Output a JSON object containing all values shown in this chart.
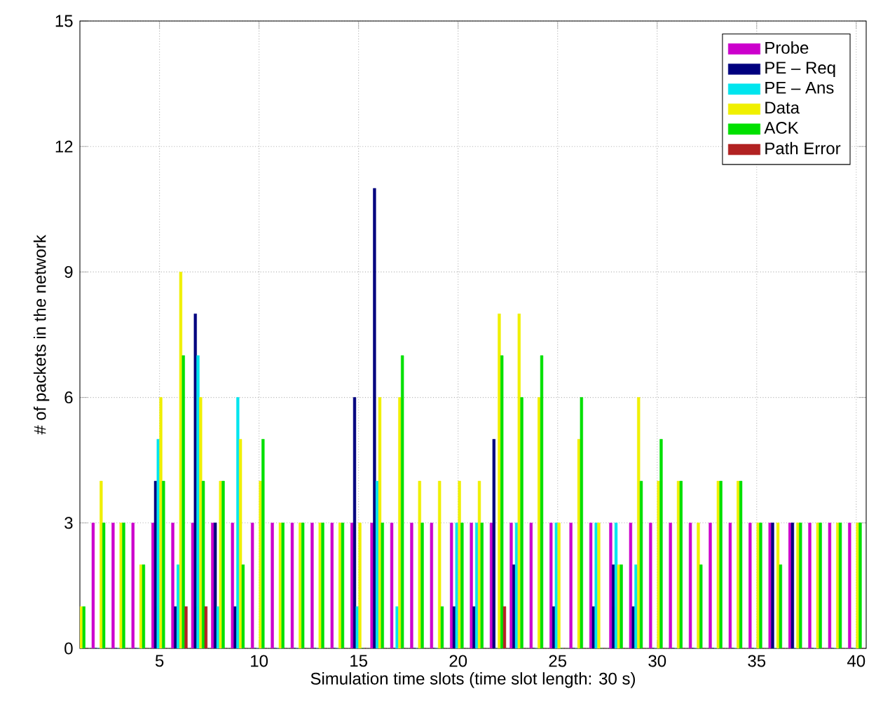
{
  "chart_data": {
    "type": "bar",
    "xlabel": "Simulation time slots (time slot length: 30 s)",
    "ylabel": "# of packets in the network",
    "x": [
      1,
      2,
      3,
      4,
      5,
      6,
      7,
      8,
      9,
      10,
      11,
      12,
      13,
      14,
      15,
      16,
      17,
      18,
      19,
      20,
      21,
      22,
      23,
      24,
      25,
      26,
      27,
      28,
      29,
      30,
      31,
      32,
      33,
      34,
      35,
      36,
      37,
      38,
      39,
      40
    ],
    "xlim": [
      1,
      40.5
    ],
    "ylim": [
      0,
      15
    ],
    "xticks": [
      5,
      10,
      15,
      20,
      25,
      30,
      35,
      40
    ],
    "yticks": [
      0,
      3,
      6,
      9,
      12,
      15
    ],
    "grid": true,
    "legend": "top right",
    "series": [
      {
        "name": "Probe",
        "color": "#cc00cc",
        "values": [
          0,
          3,
          3,
          3,
          3,
          3,
          3,
          3,
          3,
          3,
          3,
          3,
          3,
          3,
          3,
          3,
          3,
          3,
          3,
          3,
          3,
          3,
          3,
          3,
          3,
          3,
          3,
          3,
          3,
          3,
          3,
          3,
          3,
          3,
          3,
          3,
          3,
          3,
          3,
          3
        ]
      },
      {
        "name": "PE – Req",
        "color": "#00007f",
        "values": [
          0,
          0,
          0,
          0,
          4,
          1,
          8,
          3,
          1,
          0,
          0,
          0,
          0,
          0,
          6,
          11,
          0,
          0,
          0,
          1,
          1,
          5,
          2,
          0,
          1,
          0,
          1,
          2,
          1,
          0,
          0,
          0,
          0,
          0,
          0,
          3,
          3,
          0,
          0,
          0
        ]
      },
      {
        "name": "PE – Ans",
        "color": "#00e5ee",
        "values": [
          0,
          0,
          0,
          0,
          5,
          2,
          7,
          1,
          6,
          0,
          0,
          0,
          0,
          0,
          1,
          4,
          1,
          0,
          0,
          3,
          3,
          0,
          3,
          0,
          3,
          0,
          3,
          3,
          2,
          0,
          0,
          0,
          0,
          0,
          0,
          0,
          0,
          0,
          0,
          0
        ]
      },
      {
        "name": "Data",
        "color": "#f0f000",
        "values": [
          1,
          4,
          3,
          2,
          6,
          9,
          6,
          4,
          5,
          4,
          3,
          3,
          3,
          3,
          3,
          6,
          6,
          4,
          4,
          4,
          4,
          8,
          8,
          6,
          3,
          5,
          3,
          2,
          6,
          4,
          4,
          3,
          4,
          4,
          3,
          3,
          3,
          3,
          3,
          3
        ]
      },
      {
        "name": "ACK",
        "color": "#00e000",
        "values": [
          1,
          3,
          3,
          2,
          4,
          7,
          4,
          4,
          2,
          5,
          3,
          3,
          3,
          3,
          0,
          3,
          7,
          3,
          1,
          3,
          3,
          7,
          6,
          7,
          0,
          6,
          0,
          2,
          4,
          5,
          4,
          2,
          4,
          4,
          3,
          2,
          3,
          3,
          3,
          3
        ]
      },
      {
        "name": "Path Error",
        "color": "#b22222",
        "values": [
          0,
          0,
          0,
          0,
          0,
          1,
          1,
          0,
          0,
          0,
          0,
          0,
          0,
          0,
          0,
          0,
          0,
          0,
          0,
          0,
          0,
          1,
          0,
          0,
          0,
          0,
          0,
          0,
          0,
          0,
          0,
          0,
          0,
          0,
          0,
          0,
          0,
          0,
          0,
          0
        ]
      }
    ]
  }
}
